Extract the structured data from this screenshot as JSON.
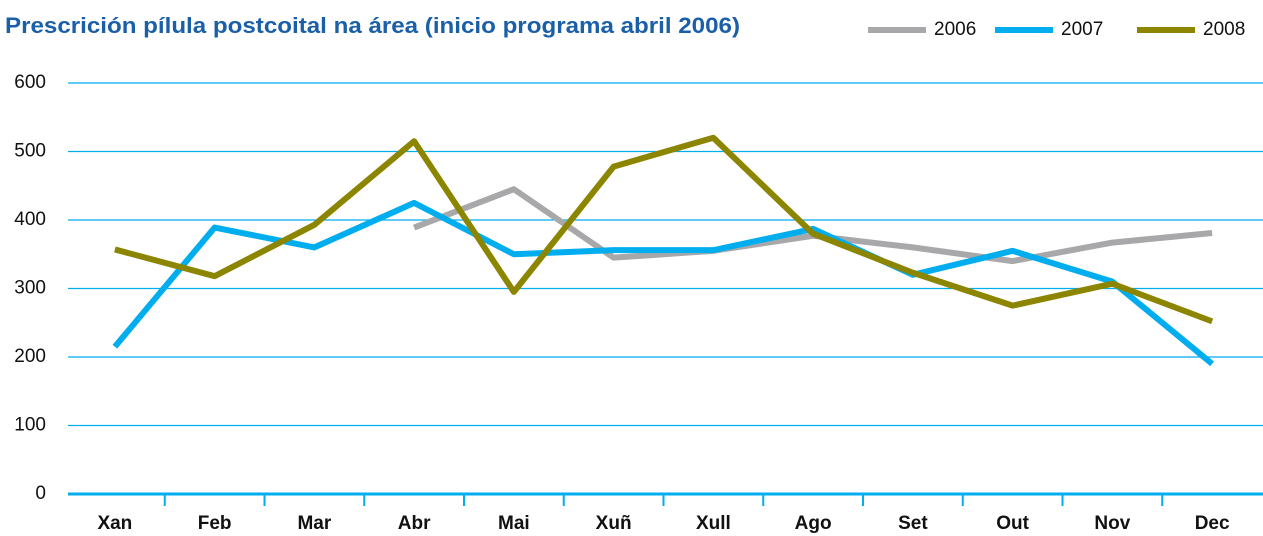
{
  "chart_data": {
    "type": "line",
    "title": "Prescrición pílula postcoital na área (inicio programa abril 2006)",
    "categories": [
      "Xan",
      "Feb",
      "Mar",
      "Abr",
      "Mai",
      "Xuñ",
      "Xull",
      "Ago",
      "Set",
      "Out",
      "Nov",
      "Dec"
    ],
    "series": [
      {
        "name": "2006",
        "color": "#a8a8aa",
        "values": [
          null,
          null,
          null,
          389,
          445,
          345,
          355,
          377,
          360,
          340,
          367,
          381
        ]
      },
      {
        "name": "2007",
        "color": "#00aeef",
        "values": [
          215,
          389,
          360,
          425,
          350,
          356,
          356,
          387,
          320,
          355,
          310,
          190
        ]
      },
      {
        "name": "2008",
        "color": "#8c8500",
        "values": [
          357,
          318,
          393,
          515,
          295,
          478,
          520,
          380,
          323,
          275,
          307,
          252
        ]
      }
    ],
    "ylim": [
      0,
      600
    ],
    "yticks": [
      0,
      100,
      200,
      300,
      400,
      500,
      600
    ],
    "grid": true,
    "grid_color": "#00aeef",
    "legend": "top-right"
  }
}
